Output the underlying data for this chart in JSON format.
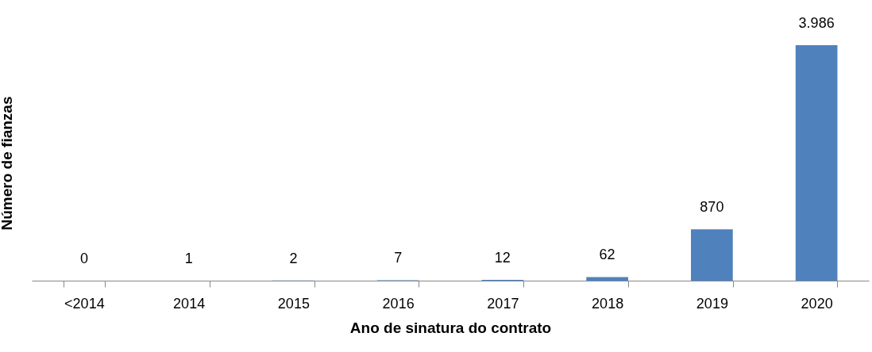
{
  "chart_data": {
    "type": "bar",
    "xlabel": "Ano de sinatura do contrato",
    "ylabel": "Número de fianzas",
    "categories": [
      "<2014",
      "2014",
      "2015",
      "2016",
      "2017",
      "2018",
      "2019",
      "2020"
    ],
    "values": [
      0,
      1,
      2,
      7,
      12,
      62,
      870,
      3986
    ],
    "value_labels": [
      "0",
      "1",
      "2",
      "7",
      "12",
      "62",
      "870",
      "3.986"
    ],
    "color": "#4f81bd"
  }
}
